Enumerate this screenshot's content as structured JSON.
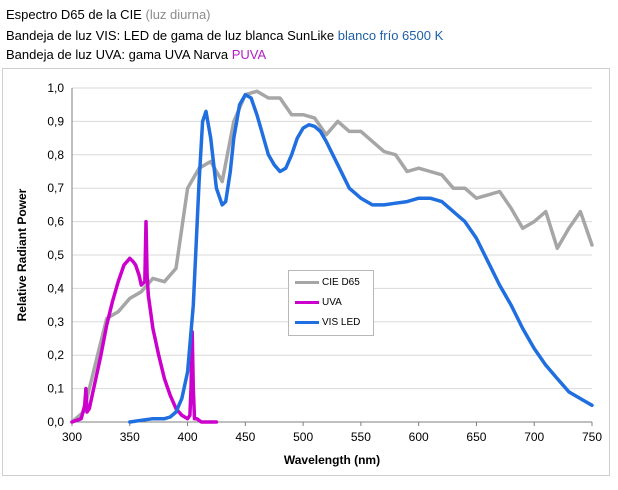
{
  "caption": {
    "line1_main": "Espectro D65 de la CIE",
    "line1_note": "(luz diurna)",
    "line2_main": "Bandeja de luz VIS: LED de gama de luz blanca SunLike",
    "line2_note": "blanco frío 6500 K",
    "line3_main": "Bandeja de luz UVA: gama UVA Narva",
    "line3_note": "PUVA"
  },
  "colors": {
    "cie": "#a6a6a6",
    "uva": "#cc00cc",
    "vis": "#1f6fe0",
    "grid": "#d9d9d9",
    "axis": "#7f7f7f"
  },
  "chart_data": {
    "type": "line",
    "title": "",
    "xlabel": "Wavelength (nm)",
    "ylabel": "Relative Radiant Power",
    "xlim": [
      300,
      750
    ],
    "ylim": [
      0,
      1
    ],
    "xticks": [
      300,
      350,
      400,
      450,
      500,
      550,
      600,
      650,
      700,
      750
    ],
    "xtick_labels": [
      "300",
      "350",
      "400",
      "450",
      "500",
      "550",
      "600",
      "650",
      "700",
      "750"
    ],
    "yticks": [
      0,
      0.1,
      0.2,
      0.3,
      0.4,
      0.5,
      0.6,
      0.7,
      0.8,
      0.9,
      1.0
    ],
    "ytick_labels": [
      "0,0",
      "0,1",
      "0,2",
      "0,3",
      "0,4",
      "0,5",
      "0,6",
      "0,7",
      "0,8",
      "0,9",
      "1,0"
    ],
    "grid": "horizontal",
    "legend_position": "center",
    "series": [
      {
        "name": "CIE D65",
        "color": "#a6a6a6",
        "x": [
          300,
          310,
          320,
          330,
          340,
          350,
          360,
          370,
          380,
          390,
          400,
          410,
          420,
          430,
          440,
          450,
          460,
          470,
          480,
          490,
          500,
          510,
          520,
          530,
          540,
          550,
          560,
          570,
          580,
          590,
          600,
          610,
          620,
          630,
          640,
          650,
          660,
          670,
          680,
          690,
          700,
          710,
          720,
          730,
          740,
          750
        ],
        "y": [
          0.0,
          0.03,
          0.17,
          0.31,
          0.33,
          0.37,
          0.39,
          0.43,
          0.42,
          0.46,
          0.7,
          0.76,
          0.78,
          0.72,
          0.9,
          0.98,
          0.99,
          0.97,
          0.97,
          0.92,
          0.92,
          0.91,
          0.86,
          0.9,
          0.87,
          0.87,
          0.84,
          0.81,
          0.8,
          0.75,
          0.76,
          0.75,
          0.74,
          0.7,
          0.7,
          0.67,
          0.68,
          0.69,
          0.64,
          0.58,
          0.6,
          0.63,
          0.52,
          0.58,
          0.63,
          0.53
        ]
      },
      {
        "name": "UVA",
        "color": "#cc00cc",
        "x": [
          300,
          308,
          311,
          312,
          313,
          315,
          320,
          325,
          330,
          335,
          340,
          345,
          350,
          353,
          355,
          358,
          360,
          363,
          364,
          365,
          366,
          368,
          370,
          375,
          380,
          385,
          390,
          395,
          400,
          402,
          403,
          404,
          405,
          406,
          408,
          412,
          418,
          425
        ],
        "y": [
          0.0,
          0.01,
          0.05,
          0.1,
          0.03,
          0.04,
          0.12,
          0.2,
          0.29,
          0.36,
          0.42,
          0.47,
          0.49,
          0.48,
          0.47,
          0.44,
          0.41,
          0.42,
          0.6,
          0.44,
          0.38,
          0.33,
          0.28,
          0.2,
          0.13,
          0.08,
          0.04,
          0.02,
          0.01,
          0.02,
          0.1,
          0.27,
          0.1,
          0.01,
          0.01,
          0.0,
          0.0,
          0.0
        ]
      },
      {
        "name": "VIS LED",
        "color": "#1f6fe0",
        "x": [
          350,
          360,
          370,
          380,
          385,
          390,
          395,
          400,
          405,
          410,
          413,
          416,
          420,
          425,
          430,
          433,
          437,
          440,
          445,
          450,
          455,
          460,
          465,
          470,
          475,
          480,
          485,
          490,
          495,
          500,
          505,
          510,
          515,
          520,
          530,
          540,
          550,
          560,
          570,
          580,
          590,
          600,
          610,
          620,
          630,
          640,
          650,
          660,
          670,
          680,
          690,
          700,
          710,
          720,
          730,
          740,
          750
        ],
        "y": [
          0.0,
          0.005,
          0.01,
          0.01,
          0.015,
          0.03,
          0.07,
          0.15,
          0.35,
          0.72,
          0.9,
          0.93,
          0.85,
          0.7,
          0.65,
          0.66,
          0.75,
          0.85,
          0.95,
          0.98,
          0.97,
          0.92,
          0.86,
          0.8,
          0.77,
          0.75,
          0.76,
          0.8,
          0.85,
          0.88,
          0.89,
          0.885,
          0.87,
          0.84,
          0.77,
          0.7,
          0.67,
          0.65,
          0.65,
          0.655,
          0.66,
          0.67,
          0.67,
          0.66,
          0.63,
          0.6,
          0.55,
          0.48,
          0.41,
          0.35,
          0.28,
          0.22,
          0.17,
          0.13,
          0.09,
          0.07,
          0.05
        ]
      }
    ]
  }
}
